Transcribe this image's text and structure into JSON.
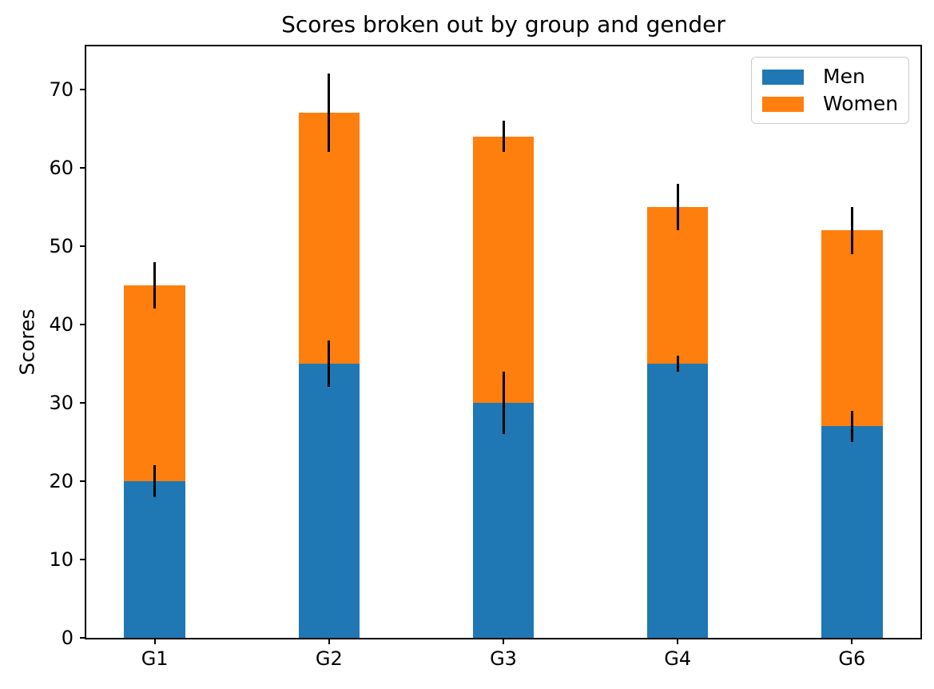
{
  "figure": {
    "background": "#ffffff",
    "text_color": "#000000"
  },
  "chart_data": {
    "type": "bar",
    "stacked": true,
    "title": "Scores broken out by group and gender",
    "xlabel": "",
    "ylabel": "Scores",
    "categories": [
      "G1",
      "G2",
      "G3",
      "G4",
      "G6"
    ],
    "series": [
      {
        "name": "Men",
        "color": "#1f77b4",
        "values": [
          20,
          35,
          30,
          35,
          27
        ],
        "std": [
          2,
          3,
          4,
          1,
          2
        ]
      },
      {
        "name": "Women",
        "color": "#ff7f0e",
        "values": [
          25,
          32,
          34,
          20,
          25
        ],
        "std": [
          3,
          5,
          2,
          3,
          3
        ]
      }
    ],
    "totals": [
      45,
      67,
      64,
      55,
      52
    ],
    "error_bar_color": "#000000",
    "yticks": [
      0,
      10,
      20,
      30,
      40,
      50,
      60,
      70
    ],
    "ylim": [
      0,
      75.5
    ],
    "bar_width": 0.35,
    "grid": false,
    "legend": {
      "position": "upper right",
      "entries": [
        "Men",
        "Women"
      ]
    }
  }
}
